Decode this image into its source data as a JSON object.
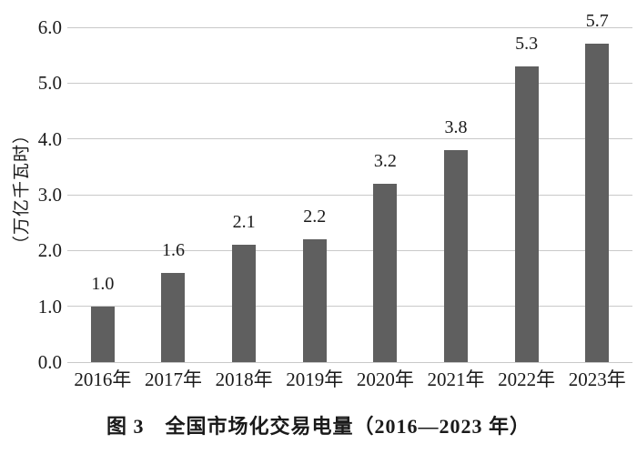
{
  "chart_data": {
    "type": "bar",
    "title": "图 3　全国市场化交易电量（2016—2023 年）",
    "categories": [
      "2016年",
      "2017年",
      "2018年",
      "2019年",
      "2020年",
      "2021年",
      "2022年",
      "2023年"
    ],
    "values": [
      1.0,
      1.6,
      2.1,
      2.2,
      3.2,
      3.8,
      5.3,
      5.7
    ],
    "data_labels": [
      "1.0",
      "1.6",
      "2.1",
      "2.2",
      "3.2",
      "3.8",
      "5.3",
      "5.7"
    ],
    "xlabel": "",
    "ylabel": "（万亿千瓦时）",
    "ylim": [
      0.0,
      6.0
    ],
    "ytick_step": 1.0,
    "ytick_labels": [
      "0.0",
      "1.0",
      "2.0",
      "3.0",
      "4.0",
      "5.0",
      "6.0"
    ],
    "grid": true,
    "legend": "none",
    "colors": {
      "bar": "#5f5f5f",
      "gridline": "#c9c9c9",
      "text": "#1a1a1a",
      "background": "#ffffff"
    }
  }
}
